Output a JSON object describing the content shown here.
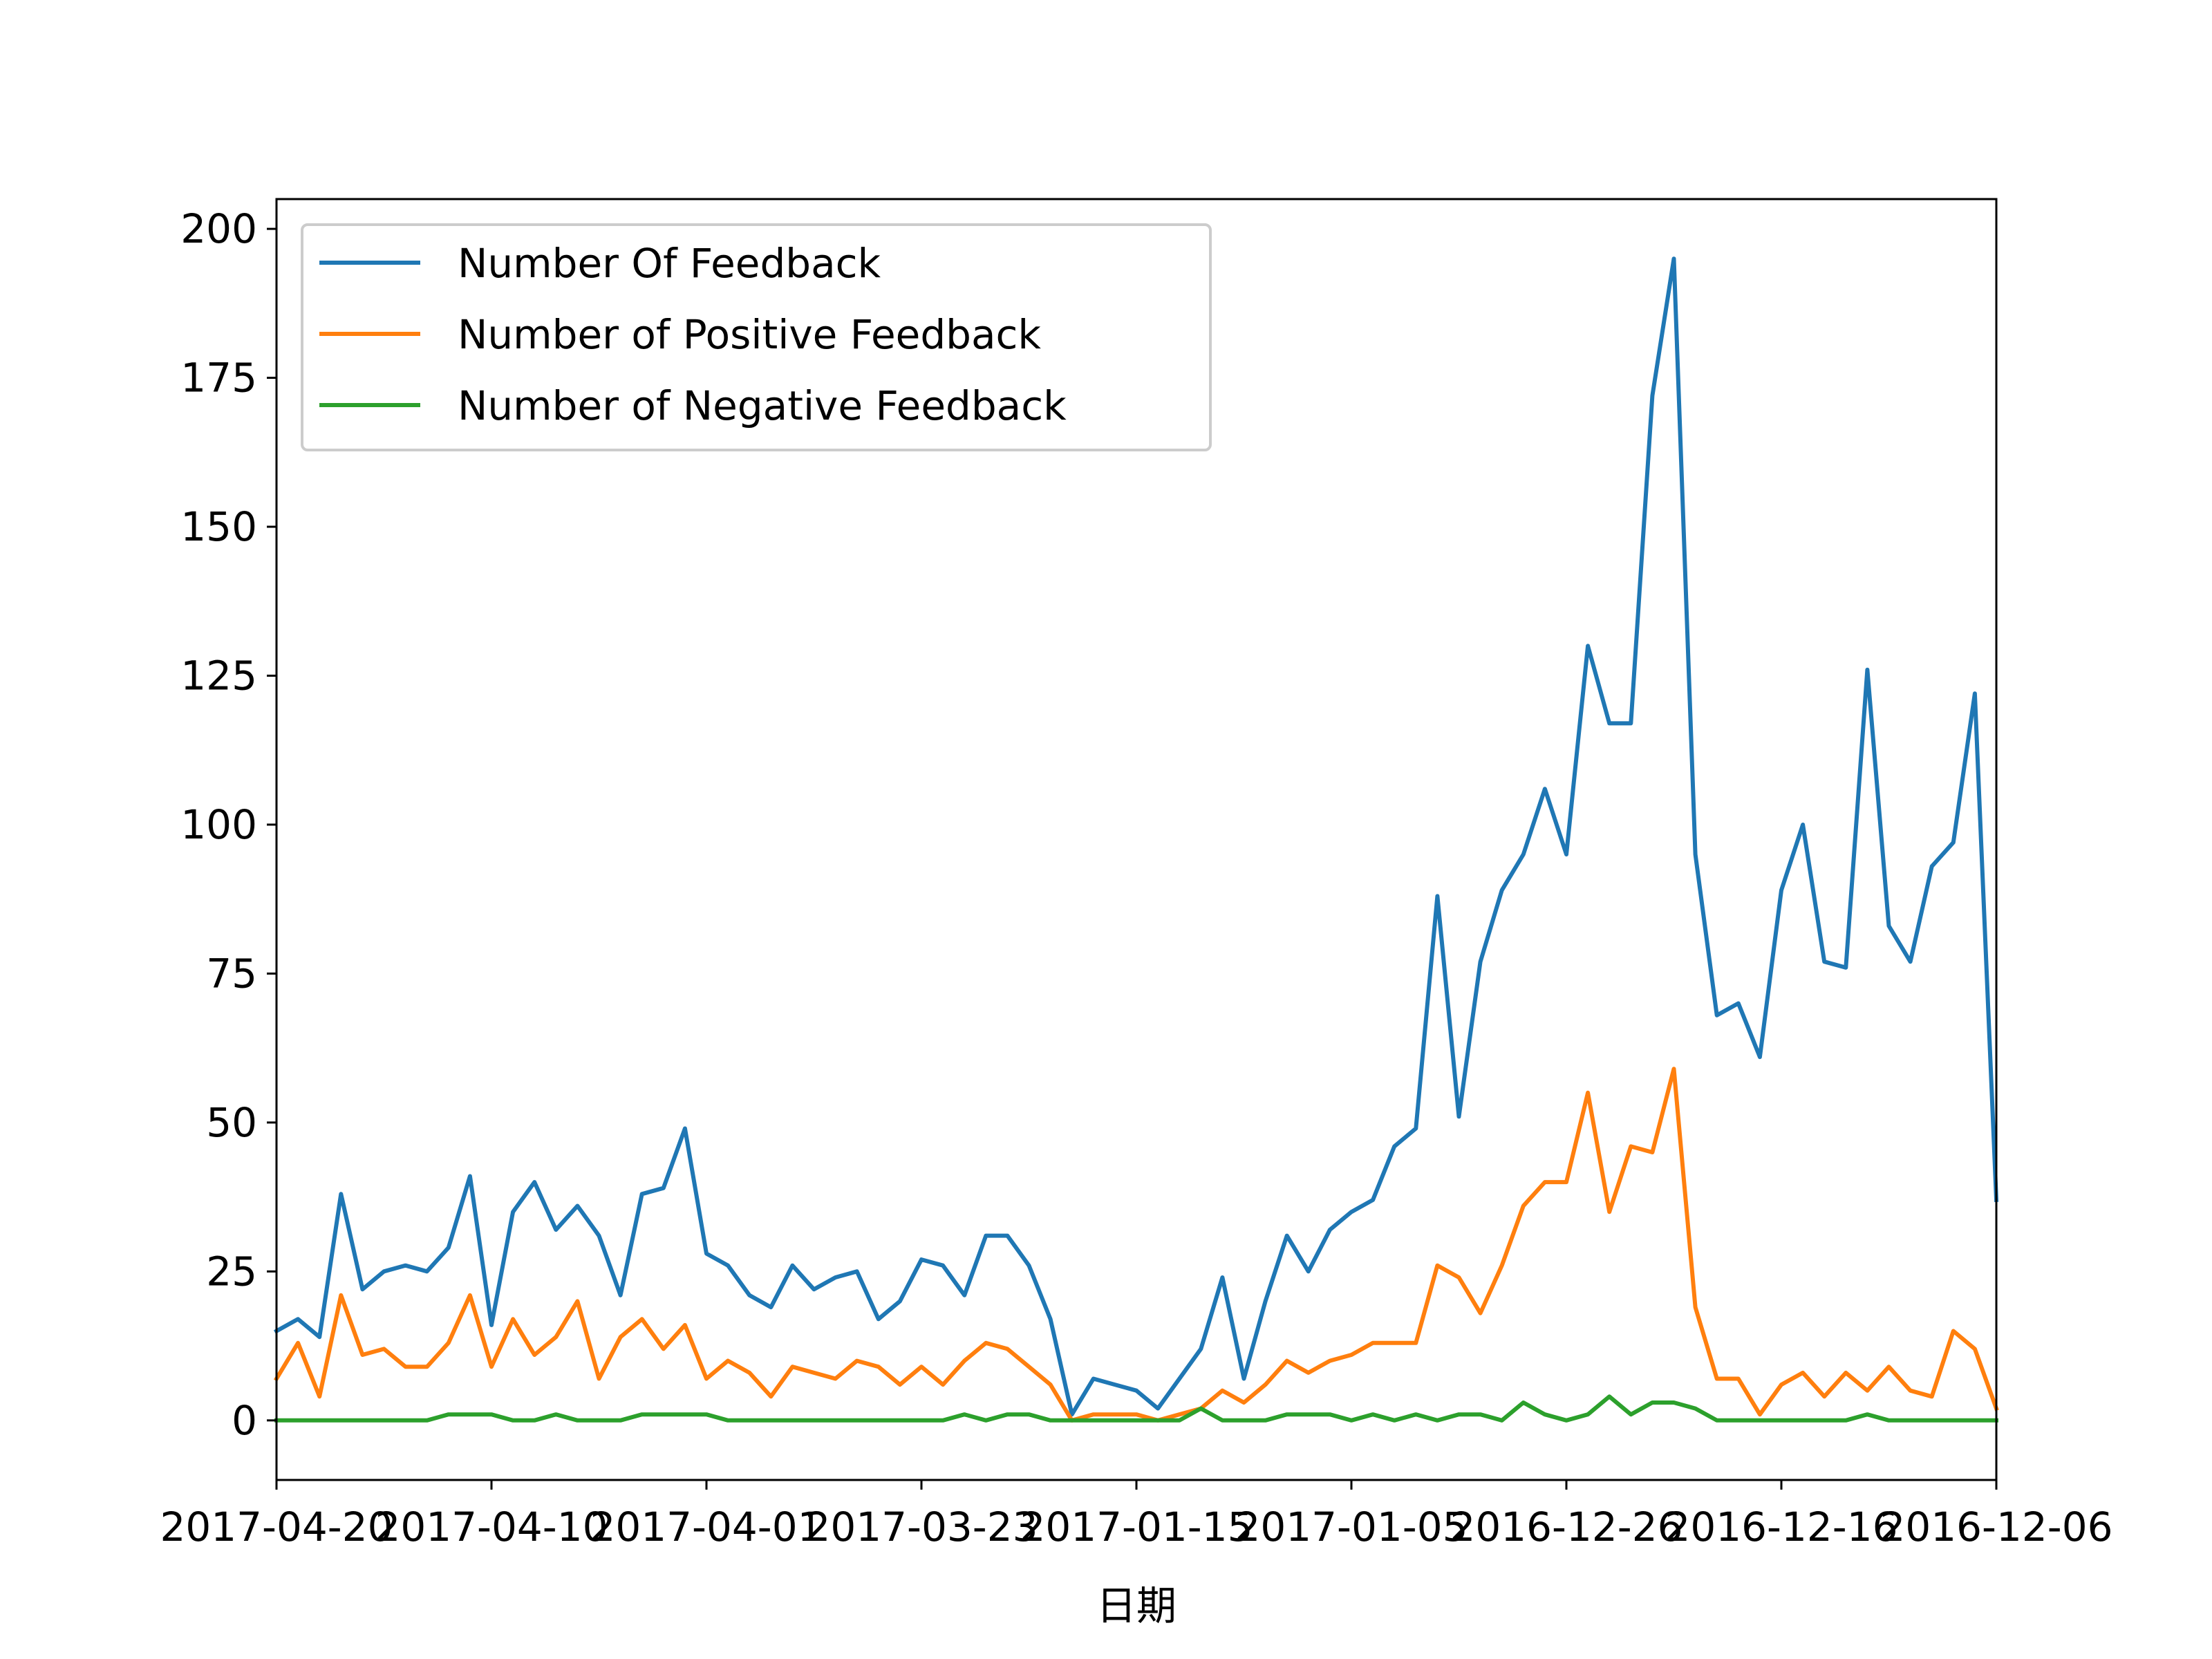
{
  "chart_data": {
    "type": "line",
    "title": "",
    "xlabel": "日期",
    "ylabel": "",
    "ylim": [
      -10,
      205
    ],
    "xlim": [
      0,
      80
    ],
    "grid": false,
    "legend_position": "upper-left",
    "y_ticks": [
      0,
      25,
      50,
      75,
      100,
      125,
      150,
      175,
      200
    ],
    "x_tick_positions": [
      0,
      10,
      20,
      30,
      40,
      50,
      60,
      70,
      80
    ],
    "x_tick_labels": [
      "2017-04-20",
      "2017-04-10",
      "2017-04-01",
      "2017-03-23",
      "2017-01-15",
      "2017-01-05",
      "2016-12-26",
      "2016-12-16",
      "2016-12-06"
    ],
    "series": [
      {
        "name": "Number Of Feedback",
        "color": "#1f77b4",
        "values": [
          15,
          17,
          14,
          38,
          22,
          25,
          26,
          25,
          29,
          41,
          16,
          35,
          40,
          32,
          36,
          31,
          21,
          38,
          39,
          49,
          28,
          26,
          21,
          19,
          26,
          22,
          24,
          25,
          17,
          20,
          27,
          26,
          21,
          31,
          31,
          26,
          17,
          1,
          7,
          6,
          5,
          2,
          7,
          12,
          24,
          7,
          20,
          31,
          25,
          32,
          35,
          37,
          46,
          49,
          88,
          51,
          77,
          89,
          95,
          106,
          95,
          130,
          117,
          117,
          172,
          195,
          95,
          68,
          70,
          61,
          89,
          100,
          77,
          76,
          126,
          83,
          77,
          93,
          97,
          122,
          37
        ]
      },
      {
        "name": "Number of Positive Feedback",
        "color": "#ff7f0e",
        "values": [
          7,
          13,
          4,
          21,
          11,
          12,
          9,
          9,
          13,
          21,
          9,
          17,
          11,
          14,
          20,
          7,
          14,
          17,
          12,
          16,
          7,
          10,
          8,
          4,
          9,
          8,
          7,
          10,
          9,
          6,
          9,
          6,
          10,
          13,
          12,
          9,
          6,
          0,
          1,
          1,
          1,
          0,
          1,
          2,
          5,
          3,
          6,
          10,
          8,
          10,
          11,
          13,
          13,
          13,
          26,
          24,
          18,
          26,
          36,
          40,
          40,
          55,
          35,
          46,
          45,
          59,
          19,
          7,
          7,
          1,
          6,
          8,
          4,
          8,
          5,
          9,
          5,
          4,
          15,
          12,
          2
        ]
      },
      {
        "name": "Number of Negative Feedback",
        "color": "#2ca02c",
        "values": [
          0,
          0,
          0,
          0,
          0,
          0,
          0,
          0,
          1,
          1,
          1,
          0,
          0,
          1,
          0,
          0,
          0,
          1,
          1,
          1,
          1,
          0,
          0,
          0,
          0,
          0,
          0,
          0,
          0,
          0,
          0,
          0,
          1,
          0,
          1,
          1,
          0,
          0,
          0,
          0,
          0,
          0,
          0,
          2,
          0,
          0,
          0,
          1,
          1,
          1,
          0,
          1,
          0,
          1,
          0,
          1,
          1,
          0,
          3,
          1,
          0,
          1,
          4,
          1,
          3,
          3,
          2,
          0,
          0,
          0,
          0,
          0,
          0,
          0,
          1,
          0,
          0,
          0,
          0,
          0,
          0
        ]
      }
    ]
  }
}
